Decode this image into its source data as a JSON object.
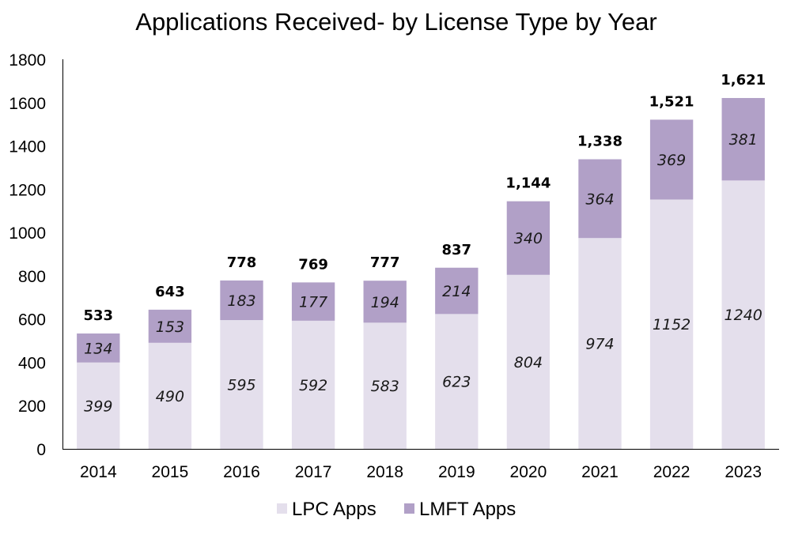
{
  "chart_data": {
    "type": "bar",
    "stacked": true,
    "title": "Applications Received- by License Type by Year",
    "xlabel": "",
    "ylabel": "",
    "ylim": [
      0,
      1800
    ],
    "yticks": [
      0,
      200,
      400,
      600,
      800,
      1000,
      1200,
      1400,
      1600,
      1800
    ],
    "grid": false,
    "categories": [
      "2014",
      "2015",
      "2016",
      "2017",
      "2018",
      "2019",
      "2020",
      "2021",
      "2022",
      "2023"
    ],
    "series": [
      {
        "name": "LPC Apps",
        "color": "#e4dfec",
        "values": [
          399,
          490,
          595,
          592,
          583,
          623,
          804,
          974,
          1152,
          1240
        ]
      },
      {
        "name": "LMFT Apps",
        "color": "#b1a0c7",
        "values": [
          134,
          153,
          183,
          177,
          194,
          214,
          340,
          364,
          369,
          381
        ]
      }
    ],
    "totals": [
      "533",
      "643",
      "778",
      "769",
      "777",
      "837",
      "1,144",
      "1,338",
      "1,521",
      "1,621"
    ],
    "legend": {
      "position": "bottom",
      "entries": [
        "LPC Apps",
        "LMFT Apps"
      ]
    }
  }
}
